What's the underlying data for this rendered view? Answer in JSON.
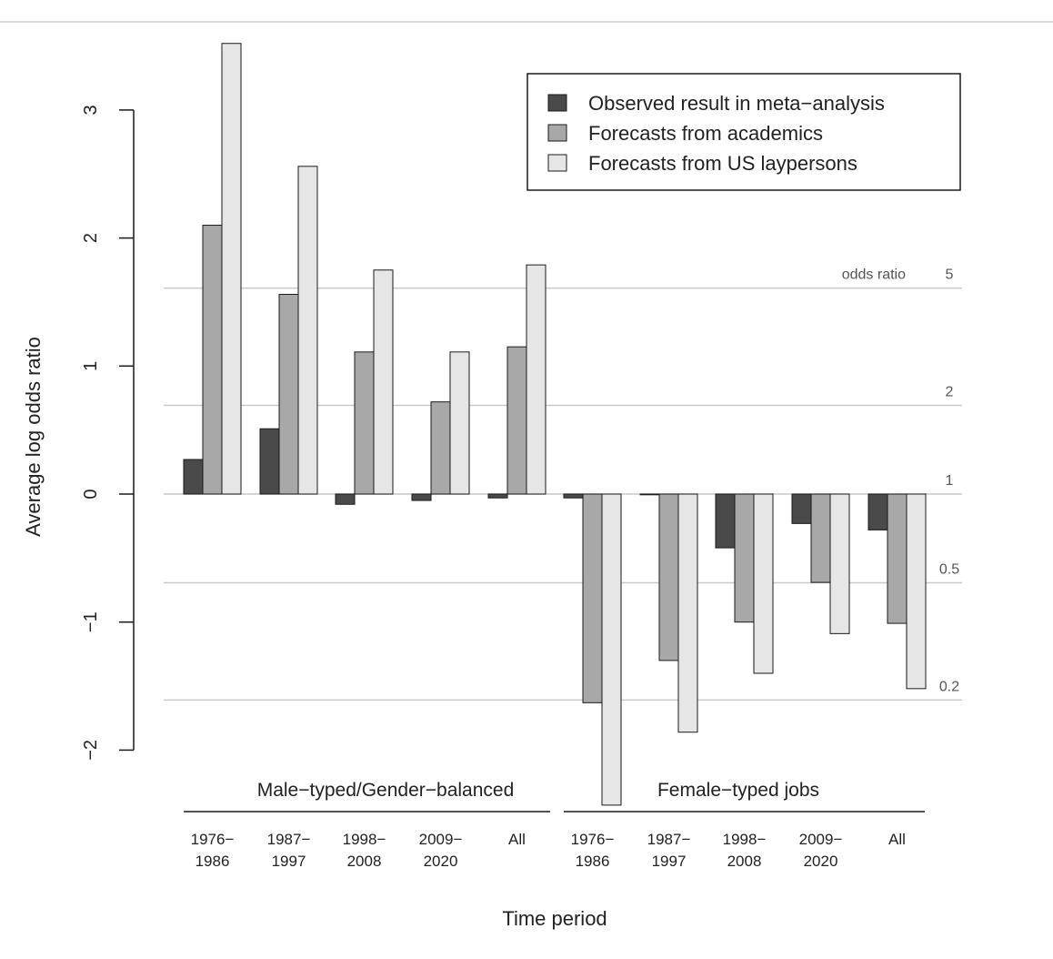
{
  "chart_data": {
    "type": "bar",
    "ylabel": "Average log odds ratio",
    "xlabel": "Time period",
    "ylim": [
      -2.0,
      3.5
    ],
    "yticks": [
      -2,
      -1,
      0,
      1,
      2,
      3
    ],
    "ytick_labels": [
      "−2",
      "−1",
      "0",
      "1",
      "2",
      "3"
    ],
    "grid": false,
    "legend_position": "top-right",
    "groups": [
      {
        "label": "Male−typed/Gender−balanced",
        "categories": [
          0,
          1,
          2,
          3,
          4
        ]
      },
      {
        "label": "Female−typed jobs",
        "categories": [
          5,
          6,
          7,
          8,
          9
        ]
      }
    ],
    "categories": [
      [
        "1976−",
        "1986"
      ],
      [
        "1987−",
        "1997"
      ],
      [
        "1998−",
        "2008"
      ],
      [
        "2009−",
        "2020"
      ],
      [
        "All"
      ],
      [
        "1976−",
        "1986"
      ],
      [
        "1987−",
        "1997"
      ],
      [
        "1998−",
        "2008"
      ],
      [
        "2009−",
        "2020"
      ],
      [
        "All"
      ]
    ],
    "series": [
      {
        "name": "Observed result in meta−analysis",
        "color": "#4a4a4a",
        "values": [
          0.27,
          0.51,
          -0.08,
          -0.05,
          -0.03,
          -0.03,
          0.0,
          -0.42,
          -0.23,
          -0.28
        ]
      },
      {
        "name": "Forecasts from academics",
        "color": "#a8a8a8",
        "values": [
          2.1,
          1.56,
          1.11,
          0.72,
          1.15,
          -1.63,
          -1.3,
          -1.0,
          -0.69,
          -1.01
        ]
      },
      {
        "name": "Forecasts from US laypersons",
        "color": "#e6e6e6",
        "values": [
          3.52,
          2.56,
          1.75,
          1.11,
          1.79,
          -2.43,
          -1.86,
          -1.4,
          -1.09,
          -1.52
        ]
      }
    ],
    "odds_ratio_axis": {
      "title": "odds ratio",
      "lines": [
        {
          "label": "5",
          "value": 1.609
        },
        {
          "label": "2",
          "value": 0.693
        },
        {
          "label": "1",
          "value": 0.0
        },
        {
          "label": "0.5",
          "value": -0.693
        },
        {
          "label": "0.2",
          "value": -1.609
        }
      ]
    }
  }
}
